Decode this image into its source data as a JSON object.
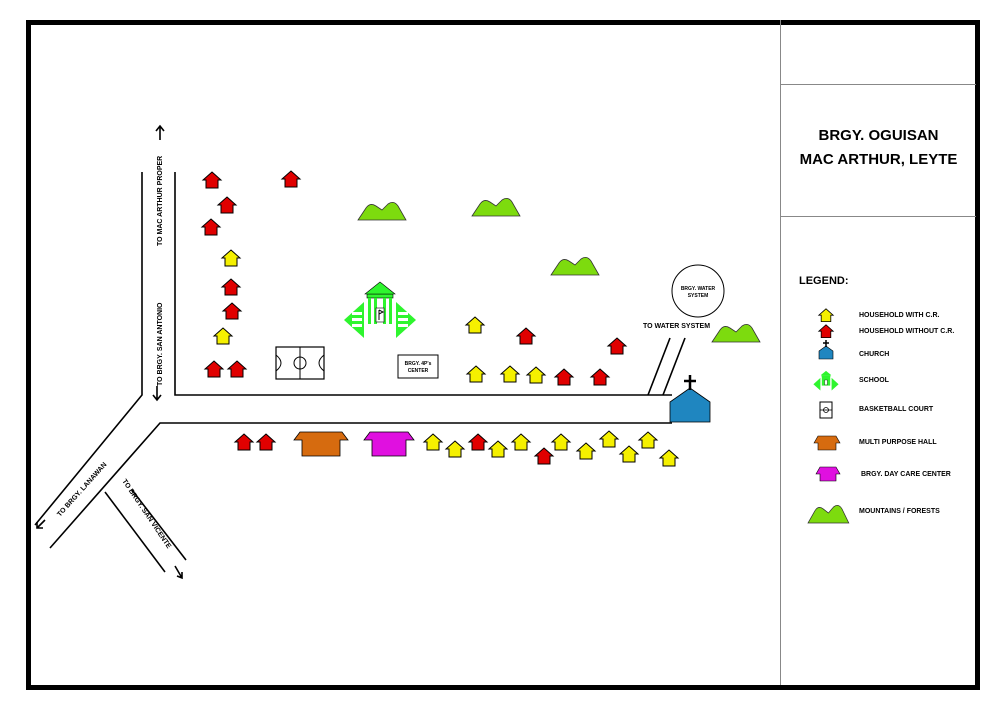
{
  "title": {
    "line1": "BRGY. OGUISAN",
    "line2": "MAC ARTHUR, LEYTE"
  },
  "legend": {
    "heading": "LEGEND:",
    "items": [
      {
        "icon": "house-yellow-icon",
        "label": "HOUSEHOLD WITH C.R."
      },
      {
        "icon": "house-red-icon",
        "label": "HOUSEHOLD WITHOUT C.R."
      },
      {
        "icon": "church-icon",
        "label": "CHURCH"
      },
      {
        "icon": "school-icon",
        "label": "SCHOOL"
      },
      {
        "icon": "basketball-court-icon",
        "label": "BASKETBALL COURT"
      },
      {
        "icon": "multi-purpose-hall-icon",
        "label": "MULTI PURPOSE HALL"
      },
      {
        "icon": "day-care-center-icon",
        "label": "BRGY. DAY CARE CENTER"
      },
      {
        "icon": "mountain-icon",
        "label": "MOUNTAINS / FORESTS"
      }
    ]
  },
  "roads": {
    "to_mac_arthur": "TO MAC ARTHUR PROPER",
    "to_san_antonio": "TO BRGY. SAN ANTONIO",
    "to_lanawan": "TO BRGY. LANAWAN",
    "to_san_vicente": "TO BRGY. SAN VICENTE",
    "to_water_system": "TO WATER SYSTEM"
  },
  "landmarks": {
    "water_line1": "BRGY. WATER",
    "water_line2": "SYSTEM",
    "center_line1": "BRGY. 4P's",
    "center_line2": "CENTER"
  },
  "colors": {
    "household_with_cr": "#f5f000",
    "household_without_cr": "#e00000",
    "church": "#1f86c0",
    "school": "#2ef52e",
    "multi_purpose_hall": "#d66b0f",
    "day_care_center": "#e010e0",
    "mountain": "#7ddb0e"
  }
}
